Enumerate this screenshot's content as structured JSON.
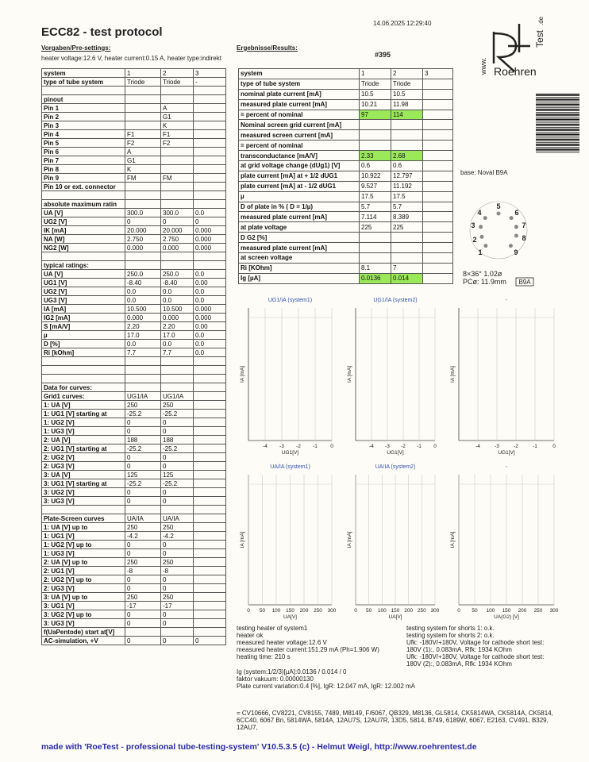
{
  "header": {
    "title": "ECC82  -  test protocol",
    "timestamp": "14.06.2025  12:29:40",
    "number": "#395"
  },
  "logo": {
    "www": "www.",
    "name": "Roehren",
    "test": "Test",
    "de": ".de"
  },
  "presettings": {
    "heading": "Vorgaben/Pre-settings:",
    "heater": "heater voltage:12.6 V, heater current:0.15 A, heater type:indirekt"
  },
  "left_table": {
    "rows": [
      [
        "system",
        "1",
        "2",
        "3"
      ],
      [
        "type of tube system",
        "Triode",
        "Triode",
        "-"
      ],
      [
        null,
        null,
        null,
        null
      ],
      [
        "pinout",
        null,
        null,
        null
      ],
      [
        "Pin 1",
        null,
        "A",
        null
      ],
      [
        "Pin 2",
        null,
        "G1",
        null
      ],
      [
        "Pin 3",
        null,
        "K",
        null
      ],
      [
        "Pin 4",
        "F1",
        "F1",
        null
      ],
      [
        "Pin 5",
        "F2",
        "F2",
        null
      ],
      [
        "Pin 6",
        "A",
        null,
        null
      ],
      [
        "Pin 7",
        "G1",
        null,
        null
      ],
      [
        "Pin 8",
        "K",
        null,
        null
      ],
      [
        "Pin 9",
        "FM",
        "FM",
        null
      ],
      [
        "Pin 10 or ext. connector",
        null,
        null,
        null
      ],
      [
        null,
        null,
        null,
        null
      ],
      [
        "absolute maximum ratin",
        null,
        null,
        null
      ],
      [
        "UA [V]",
        "300.0",
        "300.0",
        "0.0"
      ],
      [
        "UG2 [V]",
        "0",
        "0",
        "0"
      ],
      [
        "IK [mA]",
        "20.000",
        "20.000",
        "0.000"
      ],
      [
        "NA [W]",
        "2.750",
        "2.750",
        "0.000"
      ],
      [
        "NG2 [W]",
        "0.000",
        "0.000",
        "0.000"
      ],
      [
        null,
        null,
        null,
        null
      ],
      [
        "typical ratings:",
        null,
        null,
        null
      ],
      [
        "UA [V]",
        "250.0",
        "250.0",
        "0.0"
      ],
      [
        "UG1 [V]",
        "-8.40",
        "-8.40",
        "0.00"
      ],
      [
        "UG2 [V]",
        "0.0",
        "0.0",
        "0.0"
      ],
      [
        "UG3 [V]",
        "0.0",
        "0.0",
        "0.0"
      ],
      [
        "IA [mA]",
        "10.500",
        "10.500",
        "0.000"
      ],
      [
        "IG2 [mA]",
        "0.000",
        "0.000",
        "0.000"
      ],
      [
        "S [mA/V]",
        "2.20",
        "2.20",
        "0.00"
      ],
      [
        "µ",
        "17.0",
        "17.0",
        "0.0"
      ],
      [
        "D [%]",
        "0.0",
        "0.0",
        "0.0"
      ],
      [
        "Ri [kOhm]",
        "7.7",
        "7.7",
        "0.0"
      ],
      [
        null,
        null,
        null,
        null
      ],
      [
        null,
        null,
        null,
        null
      ],
      [
        null,
        null,
        null,
        null
      ],
      [
        "Data for curves:",
        null,
        null,
        null
      ],
      [
        "Grid1 curves:",
        "UG1/IA",
        "UG1/IA",
        null
      ],
      [
        "1: UA [V]",
        "250",
        "250",
        null
      ],
      [
        "1: UG1 [V] starting at",
        "-25.2",
        "-25.2",
        null
      ],
      [
        "1: UG2 [V]",
        "0",
        "0",
        null
      ],
      [
        "1: UG3 [V]",
        "0",
        "0",
        null
      ],
      [
        "2: UA [V]",
        "188",
        "188",
        null
      ],
      [
        "2: UG1 [V] starting at",
        "-25.2",
        "-25.2",
        null
      ],
      [
        "2: UG2 [V]",
        "0",
        "0",
        null
      ],
      [
        "2: UG3 [V]",
        "0",
        "0",
        null
      ],
      [
        "3: UA [V]",
        "125",
        "125",
        null
      ],
      [
        "3: UG1 [V] starting at",
        "-25.2",
        "-25.2",
        null
      ],
      [
        "3: UG2 [V]",
        "0",
        "0",
        null
      ],
      [
        "3: UG3 [V]",
        "0",
        "0",
        null
      ],
      [
        null,
        null,
        null,
        null
      ],
      [
        "Plate-Screen curves",
        "UA/IA",
        "UA/IA",
        null
      ],
      [
        "1: UA [V] up to",
        "250",
        "250",
        null
      ],
      [
        "1: UG1 [V]",
        "-4.2",
        "-4.2",
        null
      ],
      [
        "1: UG2 [V] up to",
        "0",
        "0",
        null
      ],
      [
        "1: UG3 [V]",
        "0",
        "0",
        null
      ],
      [
        "2: UA [V] up to",
        "250",
        "250",
        null
      ],
      [
        "2: UG1 [V]",
        "-8",
        "-8",
        null
      ],
      [
        "2: UG2 [V] up to",
        "0",
        "0",
        null
      ],
      [
        "2: UG3 [V]",
        "0",
        "0",
        null
      ],
      [
        "3: UA [V] up to",
        "250",
        "250",
        null
      ],
      [
        "3: UG1 [V]",
        "-17",
        "-17",
        null
      ],
      [
        "3: UG2 [V] up to",
        "0",
        "0",
        null
      ],
      [
        "3: UG3 [V]",
        "0",
        "0",
        null
      ],
      [
        "f(UaPentode) start at[V]",
        null,
        null,
        null
      ],
      [
        "AC-simulation, +V",
        "0",
        "0",
        "0"
      ]
    ]
  },
  "results": {
    "heading": "Ergebnisse/Results:",
    "highlight_rows": [
      4,
      8,
      20
    ],
    "highlight_color": "#9be85a",
    "rows": [
      [
        "system",
        "1",
        "2",
        "3"
      ],
      [
        "type of tube system",
        "Triode",
        "Triode",
        null
      ],
      [
        "nominal plate current [mA]",
        "10.5",
        "10.5",
        null
      ],
      [
        "measured plate current [mA]",
        "10.21",
        "11.98",
        null
      ],
      [
        "= percent of nominal",
        "97",
        "114",
        null
      ],
      [
        "Nominal screen grid current [mA]",
        null,
        null,
        null
      ],
      [
        "measured screen current [mA]",
        null,
        null,
        null
      ],
      [
        "= percent of nominal",
        null,
        null,
        null
      ],
      [
        "transconductance [mA/V]",
        "2.33",
        "2.68",
        null
      ],
      [
        "at grid voltage change (dUg1) [V]",
        "0.6",
        "0.6",
        null
      ],
      [
        "plate current [mA] at + 1/2 dUG1",
        "10.922",
        "12.797",
        null
      ],
      [
        "plate current [mA] at - 1/2 dUG1",
        "9.527",
        "11.192",
        null
      ],
      [
        "µ",
        "17.5",
        "17.5",
        null
      ],
      [
        "D of plate in % ( D = 1/µ)",
        "5.7",
        "5.7",
        null
      ],
      [
        "measured plate current [mA]",
        "7.114",
        "8.389",
        null
      ],
      [
        "at plate voltage",
        "225",
        "225",
        null
      ],
      [
        "D G2 [%]",
        null,
        null,
        null
      ],
      [
        "measured plate current [mA]",
        null,
        null,
        null
      ],
      [
        "at screen voltage",
        null,
        null,
        null
      ],
      [
        "Ri [KOhm]",
        "8.1",
        "7",
        null
      ],
      [
        "Ig [µA]",
        "0.0136",
        "0.014",
        null
      ]
    ]
  },
  "base": {
    "label": "base: Noval B9A",
    "pins": [
      "1",
      "2",
      "3",
      "4",
      "5",
      "6",
      "7",
      "8",
      "9"
    ],
    "spec": "8×36°  1.02ø",
    "pc": "PCø: 11.9mm",
    "code": "B9A"
  },
  "charts": [
    {
      "title": "UG1/IA (system1)",
      "ylabel": "IA [mA]",
      "xlabel": "UG1[V]",
      "xlim": [
        -5,
        0
      ],
      "xticks": [
        -4,
        -3,
        -2,
        -1,
        0
      ]
    },
    {
      "title": "UG1/IA (system2)",
      "ylabel": "IA [mA]",
      "xlabel": "UG1[V]",
      "xlim": [
        -5,
        0
      ],
      "xticks": [
        -4,
        -3,
        -2,
        -1,
        0
      ]
    },
    {
      "title": "-",
      "ylabel": "IA [mA]",
      "xlabel": "UG1[V]",
      "xlim": [
        -5,
        0
      ],
      "xticks": [
        -4,
        -3,
        -2,
        -1,
        0
      ]
    },
    {
      "title": "UA/IA (system1)",
      "ylabel": "IA [mA]",
      "xlabel": "UA[V]",
      "xlim": [
        0,
        300
      ],
      "xticks": [
        0,
        50,
        100,
        150,
        200,
        250,
        300
      ]
    },
    {
      "title": "UA/IA (system2)",
      "ylabel": "IA [mA]",
      "xlabel": "UA[V]",
      "xlim": [
        0,
        300
      ],
      "xticks": [
        0,
        50,
        100,
        150,
        200,
        250,
        300
      ]
    },
    {
      "title": "-",
      "ylabel": "IA [mA]",
      "xlabel": "UA(G2) [V]",
      "xlim": [
        0,
        300
      ],
      "xticks": [
        0,
        50,
        100,
        150,
        200,
        250,
        300
      ]
    }
  ],
  "notes": {
    "heater": [
      "testing heater of system1",
      "heater ok",
      "measured heater voltage:12.6 V",
      "measured heater current:151.29 mA (Ph=1.906 W)",
      "heating time: 210 s"
    ],
    "shorts": [
      "testing system for shorts 1: o.k.",
      "testing system for shorts 2: o.k.",
      "Ufk: -180V/+180V, Voltage for cathode short test:",
      "180V (1):, 0.083mA, Rfk: 1934 KOhm",
      "Ufk: -180V/+180V, Voltage for cathode short test:",
      "180V (2):, 0.083mA, Rfk: 1934 KOhm"
    ],
    "summary": [
      "Ig (system:1/2/3)[µA]:0.0136 / 0.014 / 0",
      "faktor vakuum: 0.00000130",
      "Plate current variation:0.4 [%], IgR: 12.047 mA, IgR: 12.002 mA"
    ],
    "equivalents": "= CV10666,  CV8221,  CV8155,  7489,  M8149,  F/6067,  QB329,  M8136,  GL5814,  CK5814WA,  CK5814A,  CK5814,  6CC40,  6067 Bri,  5814WA,  5814A,  12AU7S,  12AU7R,  13D5,  5814,  B749,  6189W,  6067,  E2163,  CV491,  B329,  12AU7,"
  },
  "footer": "made with 'RoeTest - professional tube-testing-system' V10.5.3.5 (c) - Helmut Weigl, http://www.roehrentest.de"
}
